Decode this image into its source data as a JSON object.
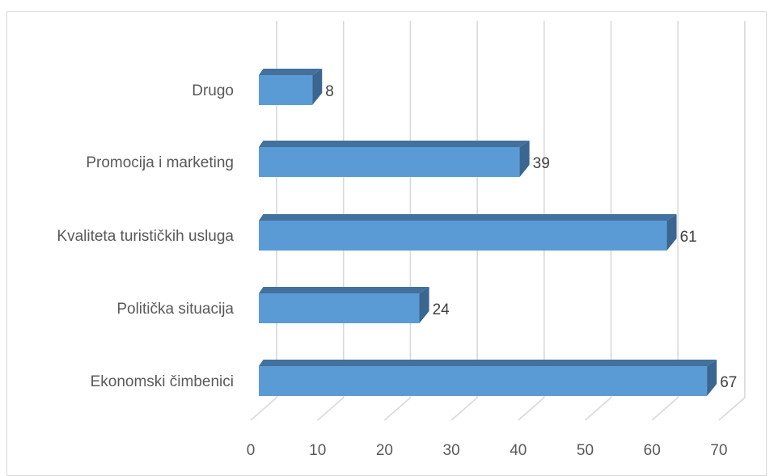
{
  "chart_data": {
    "type": "bar",
    "orientation": "horizontal",
    "style": "3d",
    "categories": [
      "Ekonomski čimbenici",
      "Politička situacija",
      "Kvaliteta turističkih usluga",
      "Promocija i marketing",
      "Drugo"
    ],
    "values": [
      67,
      24,
      61,
      39,
      8
    ],
    "data_labels": [
      "67",
      "24",
      "61",
      "39",
      "8"
    ],
    "xlim": [
      0,
      70
    ],
    "x_ticks": [
      0,
      10,
      20,
      30,
      40,
      50,
      60,
      70
    ],
    "x_tick_labels": [
      "0",
      "10",
      "20",
      "30",
      "40",
      "50",
      "60",
      "70"
    ],
    "grid": true,
    "legend": "none",
    "colors": {
      "bar_front": "#5b9bd5",
      "bar_top": "#41719c",
      "bar_side": "#3a6690",
      "grid": "#d9d9d9",
      "text": "#595959"
    }
  }
}
